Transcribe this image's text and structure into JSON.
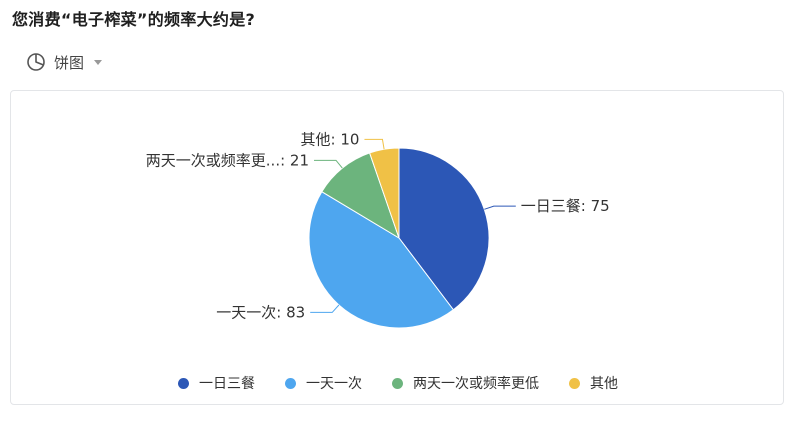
{
  "question": {
    "title": "您消费“电子榨菜”的频率大约是?"
  },
  "chart_type_selector": {
    "label": "饼图",
    "icon": "pie-chart-icon"
  },
  "chart_data": {
    "type": "pie",
    "title": "",
    "start_angle_deg": 90,
    "direction": "clockwise",
    "slices": [
      {
        "name": "一日三餐",
        "value": 75,
        "color": "#2c57b6",
        "label": "一日三餐: 75"
      },
      {
        "name": "一天一次",
        "value": 83,
        "color": "#4ea6ef",
        "label": "一天一次: 83"
      },
      {
        "name": "两天一次或频率更低",
        "value": 21,
        "color": "#6cb47d",
        "label": "两天一次或频率更...: 21"
      },
      {
        "name": "其他",
        "value": 10,
        "color": "#f0c146",
        "label": "其他: 10"
      }
    ],
    "legend_position": "bottom"
  }
}
